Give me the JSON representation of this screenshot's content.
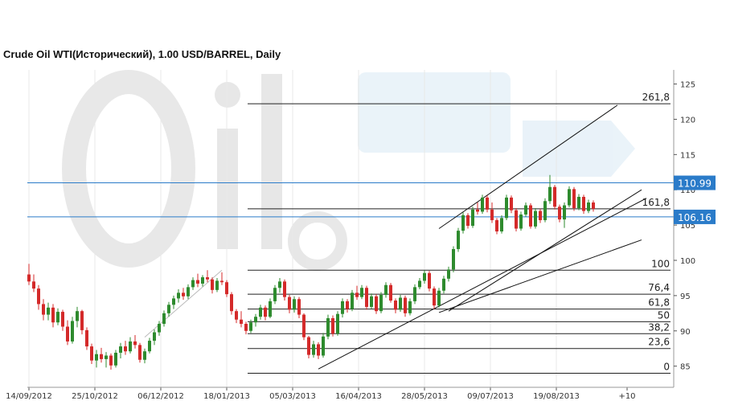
{
  "chart_data": {
    "type": "candlestick",
    "title": "Crude Oil WTI(Исторический), 1.00 USD/BARREL, Daily",
    "y_axis": {
      "ylim": [
        82,
        127
      ],
      "ticks": [
        85,
        90,
        95,
        100,
        105,
        110,
        115,
        120,
        125
      ],
      "side": "right"
    },
    "x_axis": {
      "tick_labels": [
        "14/09/2012",
        "25/10/2012",
        "06/12/2012",
        "18/01/2013",
        "05/03/2013",
        "16/04/2013",
        "28/05/2013",
        "09/07/2013",
        "19/08/2013",
        "+10"
      ]
    },
    "grid": "vertical",
    "colors": {
      "up": "#2e8b2e",
      "down": "#d42a2a",
      "price_tag": "#2a7bc9",
      "hline": "#2a7bc9",
      "grid": "#e8e8e8"
    },
    "price_levels": [
      {
        "label": "110.99",
        "value": 110.99
      },
      {
        "label": "106.16",
        "value": 106.16
      }
    ],
    "fibonacci_levels": [
      {
        "label": "261,8",
        "value": 122.2
      },
      {
        "label": "161,8",
        "value": 107.3
      },
      {
        "label": "100",
        "value": 98.6
      },
      {
        "label": "76,4",
        "value": 95.2
      },
      {
        "label": "61,8",
        "value": 93.1
      },
      {
        "label": "50",
        "value": 91.3
      },
      {
        "label": "38,2",
        "value": 89.6
      },
      {
        "label": "23,6",
        "value": 87.5
      },
      {
        "label": "0",
        "value": 84.0
      }
    ],
    "trend_lines": [
      {
        "name": "channel-upper",
        "from": [
          85,
          104.5
        ],
        "to": [
          122,
          122.0
        ]
      },
      {
        "name": "channel-lower-steep",
        "from": [
          87,
          92.8
        ],
        "to": [
          127,
          110.0
        ]
      },
      {
        "name": "trend-lower",
        "from": [
          60,
          84.6
        ],
        "to": [
          128,
          108.8
        ]
      },
      {
        "name": "trend-medium",
        "from": [
          85,
          92.6
        ],
        "to": [
          127,
          102.9
        ]
      },
      {
        "name": "swing-line",
        "from": [
          24,
          89.1
        ],
        "to": [
          40,
          98.6
        ]
      }
    ],
    "ohlc": [
      {
        "o": 98,
        "h": 99.5,
        "l": 96.5,
        "c": 97
      },
      {
        "o": 97,
        "h": 98,
        "l": 95.5,
        "c": 96
      },
      {
        "o": 96,
        "h": 96.5,
        "l": 93,
        "c": 93.8
      },
      {
        "o": 93.8,
        "h": 94.5,
        "l": 91.5,
        "c": 92.3
      },
      {
        "o": 92.3,
        "h": 94,
        "l": 91.5,
        "c": 93.3
      },
      {
        "o": 93.3,
        "h": 93.8,
        "l": 90.5,
        "c": 91.2
      },
      {
        "o": 91.2,
        "h": 93.2,
        "l": 90.8,
        "c": 92.7
      },
      {
        "o": 92.7,
        "h": 93,
        "l": 90,
        "c": 90.6
      },
      {
        "o": 90.6,
        "h": 91.5,
        "l": 88,
        "c": 88.5
      },
      {
        "o": 88.5,
        "h": 92,
        "l": 88.2,
        "c": 91.4
      },
      {
        "o": 91.4,
        "h": 93.4,
        "l": 90.5,
        "c": 92.8
      },
      {
        "o": 92.8,
        "h": 93,
        "l": 89.5,
        "c": 90.1
      },
      {
        "o": 90.1,
        "h": 90.5,
        "l": 87.3,
        "c": 87.8
      },
      {
        "o": 87.8,
        "h": 88.2,
        "l": 85.3,
        "c": 85.8
      },
      {
        "o": 85.8,
        "h": 87.3,
        "l": 84.8,
        "c": 86.7
      },
      {
        "o": 86.7,
        "h": 87.6,
        "l": 85.5,
        "c": 86
      },
      {
        "o": 86,
        "h": 87,
        "l": 84.8,
        "c": 86.5
      },
      {
        "o": 86.5,
        "h": 86.8,
        "l": 84.5,
        "c": 85.1
      },
      {
        "o": 85.1,
        "h": 87.3,
        "l": 84.8,
        "c": 86.9
      },
      {
        "o": 86.9,
        "h": 88.3,
        "l": 86.1,
        "c": 87.8
      },
      {
        "o": 87.8,
        "h": 88.6,
        "l": 86.6,
        "c": 87.1
      },
      {
        "o": 87.1,
        "h": 89.1,
        "l": 86.8,
        "c": 88.5
      },
      {
        "o": 88.5,
        "h": 89.4,
        "l": 87.5,
        "c": 88
      },
      {
        "o": 88,
        "h": 88.3,
        "l": 85.5,
        "c": 85.9
      },
      {
        "o": 85.9,
        "h": 87.5,
        "l": 85.4,
        "c": 87.1
      },
      {
        "o": 87.1,
        "h": 89,
        "l": 86.8,
        "c": 88.6
      },
      {
        "o": 88.6,
        "h": 90.2,
        "l": 88,
        "c": 89.8
      },
      {
        "o": 89.8,
        "h": 91.4,
        "l": 89.3,
        "c": 91
      },
      {
        "o": 91,
        "h": 92.9,
        "l": 90.6,
        "c": 92.5
      },
      {
        "o": 92.5,
        "h": 94.1,
        "l": 92,
        "c": 93.7
      },
      {
        "o": 93.7,
        "h": 95,
        "l": 93.1,
        "c": 94.6
      },
      {
        "o": 94.6,
        "h": 95.9,
        "l": 94,
        "c": 95.4
      },
      {
        "o": 95.4,
        "h": 96.1,
        "l": 94.4,
        "c": 94.9
      },
      {
        "o": 94.9,
        "h": 96.6,
        "l": 94.5,
        "c": 96.2
      },
      {
        "o": 96.2,
        "h": 97.6,
        "l": 95.8,
        "c": 97.2
      },
      {
        "o": 97.2,
        "h": 98.1,
        "l": 96.2,
        "c": 96.7
      },
      {
        "o": 96.7,
        "h": 97.9,
        "l": 96.3,
        "c": 97.6
      },
      {
        "o": 97.6,
        "h": 98.6,
        "l": 96.9,
        "c": 97.3
      },
      {
        "o": 97.3,
        "h": 97.6,
        "l": 95.3,
        "c": 95.8
      },
      {
        "o": 95.8,
        "h": 97.5,
        "l": 95.5,
        "c": 97.1
      },
      {
        "o": 97.1,
        "h": 98.3,
        "l": 96.5,
        "c": 96.9
      },
      {
        "o": 96.9,
        "h": 97.2,
        "l": 94.8,
        "c": 95.2
      },
      {
        "o": 95.2,
        "h": 95.5,
        "l": 92.3,
        "c": 92.8
      },
      {
        "o": 92.8,
        "h": 93.1,
        "l": 91.1,
        "c": 91.6
      },
      {
        "o": 91.6,
        "h": 92.8,
        "l": 90.5,
        "c": 91
      },
      {
        "o": 91,
        "h": 91.3,
        "l": 89.5,
        "c": 90
      },
      {
        "o": 90,
        "h": 91.6,
        "l": 89.7,
        "c": 91.2
      },
      {
        "o": 91.2,
        "h": 92.4,
        "l": 90.6,
        "c": 92
      },
      {
        "o": 92,
        "h": 93.7,
        "l": 91.6,
        "c": 93.3
      },
      {
        "o": 93.3,
        "h": 93.6,
        "l": 91.5,
        "c": 92
      },
      {
        "o": 92,
        "h": 94.6,
        "l": 91.8,
        "c": 94.2
      },
      {
        "o": 94.2,
        "h": 96.5,
        "l": 93.8,
        "c": 96.1
      },
      {
        "o": 96.1,
        "h": 97.5,
        "l": 95.4,
        "c": 97
      },
      {
        "o": 97,
        "h": 97.3,
        "l": 94.3,
        "c": 94.8
      },
      {
        "o": 94.8,
        "h": 95.1,
        "l": 92.5,
        "c": 93
      },
      {
        "o": 93,
        "h": 94.9,
        "l": 92.6,
        "c": 94.5
      },
      {
        "o": 94.5,
        "h": 94.8,
        "l": 91.8,
        "c": 92.3
      },
      {
        "o": 92.3,
        "h": 92.5,
        "l": 88.7,
        "c": 89.1
      },
      {
        "o": 89.1,
        "h": 89.3,
        "l": 86.1,
        "c": 86.6
      },
      {
        "o": 86.6,
        "h": 88.6,
        "l": 86.2,
        "c": 88.1
      },
      {
        "o": 88.1,
        "h": 88.4,
        "l": 86,
        "c": 86.5
      },
      {
        "o": 86.5,
        "h": 89.7,
        "l": 86.2,
        "c": 89.2
      },
      {
        "o": 89.2,
        "h": 92.3,
        "l": 88.8,
        "c": 91.8
      },
      {
        "o": 91.8,
        "h": 92.2,
        "l": 89.2,
        "c": 89.6
      },
      {
        "o": 89.6,
        "h": 92.8,
        "l": 89.3,
        "c": 92.4
      },
      {
        "o": 92.4,
        "h": 94.6,
        "l": 91.9,
        "c": 94.2
      },
      {
        "o": 94.2,
        "h": 94.5,
        "l": 92.6,
        "c": 93.1
      },
      {
        "o": 93.1,
        "h": 95.8,
        "l": 92.8,
        "c": 95.4
      },
      {
        "o": 95.4,
        "h": 96.4,
        "l": 94.4,
        "c": 94.8
      },
      {
        "o": 94.8,
        "h": 96.5,
        "l": 94.5,
        "c": 96.1
      },
      {
        "o": 96.1,
        "h": 96.4,
        "l": 93,
        "c": 93.4
      },
      {
        "o": 93.4,
        "h": 95.3,
        "l": 93.1,
        "c": 94.9
      },
      {
        "o": 94.9,
        "h": 95.2,
        "l": 92.4,
        "c": 92.8
      },
      {
        "o": 92.8,
        "h": 95.5,
        "l": 92.5,
        "c": 95.1
      },
      {
        "o": 95.1,
        "h": 96.9,
        "l": 94.7,
        "c": 96.5
      },
      {
        "o": 96.5,
        "h": 96.8,
        "l": 94,
        "c": 94.3
      },
      {
        "o": 94.3,
        "h": 94.6,
        "l": 92.5,
        "c": 93
      },
      {
        "o": 93,
        "h": 95.1,
        "l": 92.7,
        "c": 94.7
      },
      {
        "o": 94.7,
        "h": 95,
        "l": 92,
        "c": 92.5
      },
      {
        "o": 92.5,
        "h": 94.6,
        "l": 92.2,
        "c": 94.2
      },
      {
        "o": 94.2,
        "h": 96.6,
        "l": 93.8,
        "c": 96.2
      },
      {
        "o": 96.2,
        "h": 97.5,
        "l": 95.9,
        "c": 97.1
      },
      {
        "o": 97.1,
        "h": 98.6,
        "l": 96.7,
        "c": 98.2
      },
      {
        "o": 98.2,
        "h": 98.5,
        "l": 95.6,
        "c": 96
      },
      {
        "o": 96,
        "h": 96.3,
        "l": 93.1,
        "c": 93.6
      },
      {
        "o": 93.6,
        "h": 96.1,
        "l": 93.3,
        "c": 95.7
      },
      {
        "o": 95.7,
        "h": 97.8,
        "l": 95.3,
        "c": 97.4
      },
      {
        "o": 97.4,
        "h": 99.1,
        "l": 97,
        "c": 98.7
      },
      {
        "o": 98.7,
        "h": 102,
        "l": 98.3,
        "c": 101.6
      },
      {
        "o": 101.6,
        "h": 104.6,
        "l": 101.2,
        "c": 104.2
      },
      {
        "o": 104.2,
        "h": 106.8,
        "l": 103.8,
        "c": 106.4
      },
      {
        "o": 106.4,
        "h": 106.7,
        "l": 104.5,
        "c": 104.9
      },
      {
        "o": 104.9,
        "h": 107.6,
        "l": 104.6,
        "c": 107.2
      },
      {
        "o": 107.2,
        "h": 108.2,
        "l": 106.5,
        "c": 106.9
      },
      {
        "o": 106.9,
        "h": 109.3,
        "l": 106.6,
        "c": 108.9
      },
      {
        "o": 108.9,
        "h": 109.2,
        "l": 106.8,
        "c": 107.2
      },
      {
        "o": 107.2,
        "h": 108.2,
        "l": 105.3,
        "c": 105.7
      },
      {
        "o": 105.7,
        "h": 106,
        "l": 103.7,
        "c": 104.1
      },
      {
        "o": 104.1,
        "h": 106.4,
        "l": 103.8,
        "c": 106
      },
      {
        "o": 106,
        "h": 109.3,
        "l": 105.7,
        "c": 108.9
      },
      {
        "o": 108.9,
        "h": 109.2,
        "l": 106.7,
        "c": 107.1
      },
      {
        "o": 107.1,
        "h": 107.4,
        "l": 104.1,
        "c": 104.5
      },
      {
        "o": 104.5,
        "h": 106.9,
        "l": 104.2,
        "c": 106.5
      },
      {
        "o": 106.5,
        "h": 108.2,
        "l": 106.2,
        "c": 107.8
      },
      {
        "o": 107.8,
        "h": 108.1,
        "l": 104.5,
        "c": 104.8
      },
      {
        "o": 104.8,
        "h": 107.4,
        "l": 104.5,
        "c": 107
      },
      {
        "o": 107,
        "h": 107.3,
        "l": 105.3,
        "c": 105.7
      },
      {
        "o": 105.7,
        "h": 108.8,
        "l": 105.4,
        "c": 108.4
      },
      {
        "o": 108.4,
        "h": 112.1,
        "l": 108,
        "c": 110.4
      },
      {
        "o": 110.4,
        "h": 110.7,
        "l": 107.2,
        "c": 107.6
      },
      {
        "o": 107.6,
        "h": 107.9,
        "l": 105.4,
        "c": 105.8
      },
      {
        "o": 105.8,
        "h": 108.2,
        "l": 104.6,
        "c": 107.8
      },
      {
        "o": 107.8,
        "h": 110.5,
        "l": 107.5,
        "c": 110.1
      },
      {
        "o": 110.1,
        "h": 110.4,
        "l": 107,
        "c": 107.4
      },
      {
        "o": 107.4,
        "h": 109.4,
        "l": 107.1,
        "c": 109
      },
      {
        "o": 109,
        "h": 109.3,
        "l": 106.6,
        "c": 107
      },
      {
        "o": 107,
        "h": 108.6,
        "l": 106.7,
        "c": 108.2
      },
      {
        "o": 108.2,
        "h": 108.5,
        "l": 106.9,
        "c": 107.3
      }
    ]
  }
}
